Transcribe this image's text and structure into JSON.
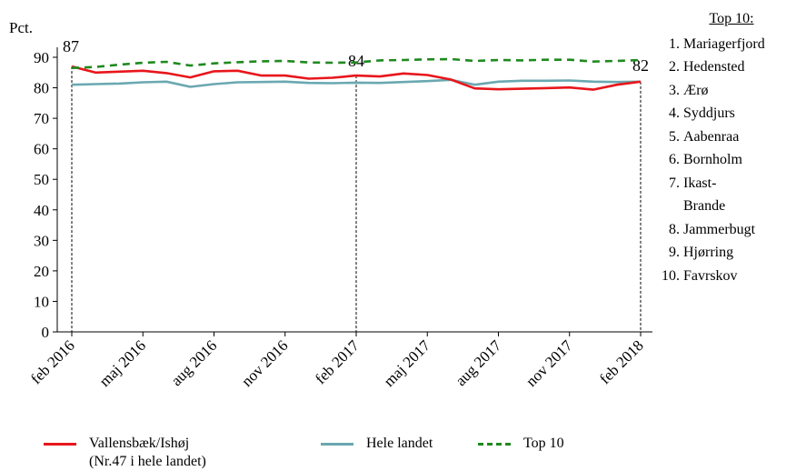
{
  "chart_data": {
    "type": "line",
    "ylabel": "Pct.",
    "ylim": [
      0,
      90
    ],
    "yticks": [
      0,
      10,
      20,
      30,
      40,
      50,
      60,
      70,
      80,
      90
    ],
    "xlim": [
      "feb 2016",
      "feb 2018"
    ],
    "xtick_labels": [
      "feb 2016",
      "maj 2016",
      "aug 2016",
      "nov 2016",
      "feb 2017",
      "maj 2017",
      "aug 2017",
      "nov 2017",
      "feb 2018"
    ],
    "x": [
      "2016-02",
      "2016-03",
      "2016-04",
      "2016-05",
      "2016-06",
      "2016-07",
      "2016-08",
      "2016-09",
      "2016-10",
      "2016-11",
      "2016-12",
      "2017-01",
      "2017-02",
      "2017-03",
      "2017-04",
      "2017-05",
      "2017-06",
      "2017-07",
      "2017-08",
      "2017-09",
      "2017-10",
      "2017-11",
      "2017-12",
      "2018-01",
      "2018-02"
    ],
    "series": [
      {
        "name": "Vallensbæk/Ishøj (Nr.47 i hele landet)",
        "color": "#e8161b",
        "style": "solid",
        "values": [
          87,
          85,
          85.3,
          85.6,
          84.8,
          83.4,
          85.4,
          85.6,
          84.0,
          84.0,
          83.0,
          83.3,
          84.0,
          83.7,
          84.7,
          84.2,
          82.7,
          79.8,
          79.5,
          79.7,
          79.9,
          80.1,
          79.4,
          81.0,
          82
        ]
      },
      {
        "name": "Hele landet",
        "color": "#6aa8b0",
        "style": "solid",
        "values": [
          81.0,
          81.2,
          81.4,
          81.8,
          82.0,
          80.3,
          81.2,
          81.8,
          81.9,
          82.0,
          81.6,
          81.5,
          81.7,
          81.6,
          81.9,
          82.2,
          82.6,
          81.0,
          82.0,
          82.3,
          82.3,
          82.4,
          82.0,
          81.9,
          82.0
        ]
      },
      {
        "name": "Top 10",
        "color": "#1f8a1f",
        "style": "dashed",
        "values": [
          86.5,
          86.8,
          87.6,
          88.2,
          88.5,
          87.3,
          88.0,
          88.4,
          88.7,
          88.8,
          88.3,
          88.2,
          88.3,
          89.0,
          89.1,
          89.3,
          89.4,
          88.8,
          89.1,
          89.0,
          89.2,
          89.2,
          88.6,
          88.8,
          89.1
        ]
      }
    ],
    "annotations": [
      {
        "label": "87",
        "x": "2016-02",
        "value": 87
      },
      {
        "label": "84",
        "x": "2017-02",
        "value": 84
      },
      {
        "label": "82",
        "x": "2018-02",
        "value": 82
      }
    ],
    "grid": false
  },
  "top10": {
    "title": "Top 10:",
    "items": [
      {
        "num": "1.",
        "name": "Mariagerfjord"
      },
      {
        "num": "2.",
        "name": "Hedensted"
      },
      {
        "num": "3.",
        "name": "Ærø"
      },
      {
        "num": "4.",
        "name": "Syddjurs"
      },
      {
        "num": "5.",
        "name": "Aabenraa"
      },
      {
        "num": "6.",
        "name": "Bornholm"
      },
      {
        "num": "7.",
        "name": "Ikast-"
      },
      {
        "num": "",
        "name": "Brande"
      },
      {
        "num": "8.",
        "name": "Jammerbugt"
      },
      {
        "num": "9.",
        "name": "Hjørring"
      },
      {
        "num": "10.",
        "name": "Favrskov"
      }
    ]
  },
  "legend": {
    "items": [
      {
        "line1": "Vallensbæk/Ishøj",
        "line2": "(Nr.47 i hele landet)"
      },
      {
        "line1": "Hele landet",
        "line2": ""
      },
      {
        "line1": "Top 10",
        "line2": ""
      }
    ]
  }
}
